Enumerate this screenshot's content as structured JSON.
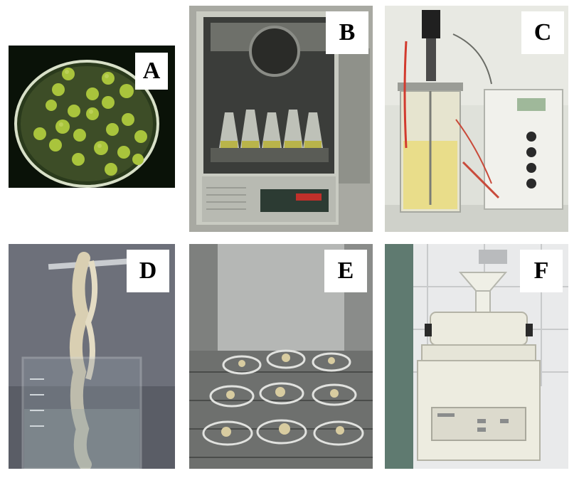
{
  "panels": [
    {
      "id": "a",
      "label": "A"
    },
    {
      "id": "b",
      "label": "B"
    },
    {
      "id": "c",
      "label": "C"
    },
    {
      "id": "d",
      "label": "D"
    },
    {
      "id": "e",
      "label": "E"
    },
    {
      "id": "f",
      "label": "F"
    }
  ],
  "colors": {
    "background": "#ffffff",
    "label_text": "#000000",
    "colony_green": "#a9c43c",
    "culture_yellow": "#e9dd8a",
    "fiber_cream": "#d9cfb2",
    "cabinet_grey": "#c9cbc2",
    "steel_grey": "#8a8c8c"
  }
}
